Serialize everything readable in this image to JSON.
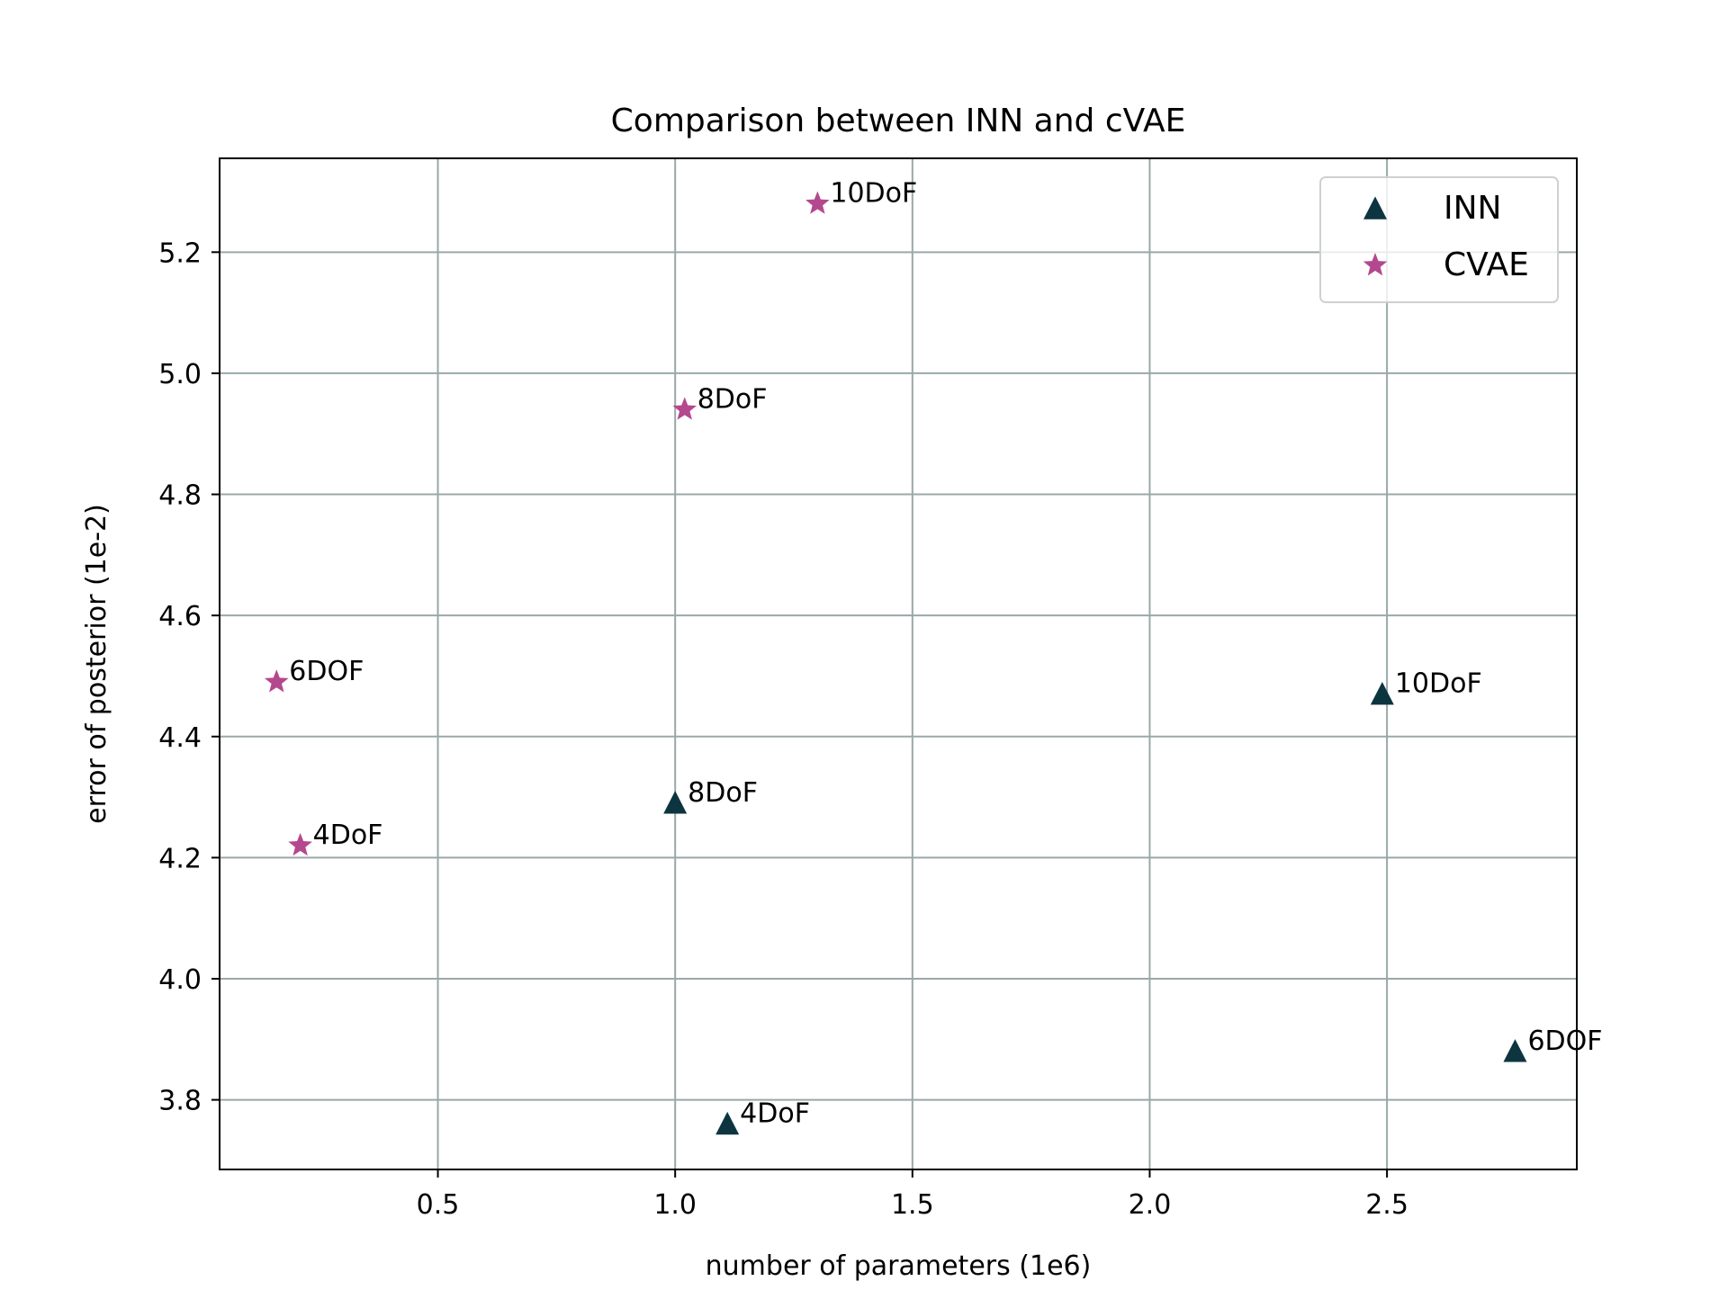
{
  "chart_data": {
    "type": "scatter",
    "title": "Comparison between INN and cVAE",
    "xlabel": "number of parameters (1e6)",
    "ylabel": "error of posterior (1e-2)",
    "xlim": [
      0.04,
      2.9
    ],
    "ylim": [
      3.685,
      5.355
    ],
    "xticks": [
      0.5,
      1.0,
      1.5,
      2.0,
      2.5
    ],
    "xtick_labels": [
      "0.5",
      "1.0",
      "1.5",
      "2.0",
      "2.5"
    ],
    "yticks": [
      3.8,
      4.0,
      4.2,
      4.4,
      4.6,
      4.8,
      5.0,
      5.2
    ],
    "ytick_labels": [
      "3.8",
      "4.0",
      "4.2",
      "4.4",
      "4.6",
      "4.8",
      "5.0",
      "5.2"
    ],
    "grid": true,
    "legend_position": "top-right",
    "series": [
      {
        "name": "INN",
        "marker": "triangle",
        "color": "#0d3540",
        "points": [
          {
            "x": 1.11,
            "y": 3.76,
            "label": "4DoF"
          },
          {
            "x": 2.77,
            "y": 3.88,
            "label": "6DOF"
          },
          {
            "x": 1.0,
            "y": 4.29,
            "label": "8DoF"
          },
          {
            "x": 2.49,
            "y": 4.47,
            "label": "10DoF"
          }
        ]
      },
      {
        "name": "CVAE",
        "marker": "star",
        "color": "#b4488f",
        "points": [
          {
            "x": 0.21,
            "y": 4.22,
            "label": "4DoF"
          },
          {
            "x": 0.16,
            "y": 4.49,
            "label": "6DOF"
          },
          {
            "x": 1.02,
            "y": 4.94,
            "label": "8DoF"
          },
          {
            "x": 1.3,
            "y": 5.28,
            "label": "10DoF"
          }
        ]
      }
    ]
  }
}
